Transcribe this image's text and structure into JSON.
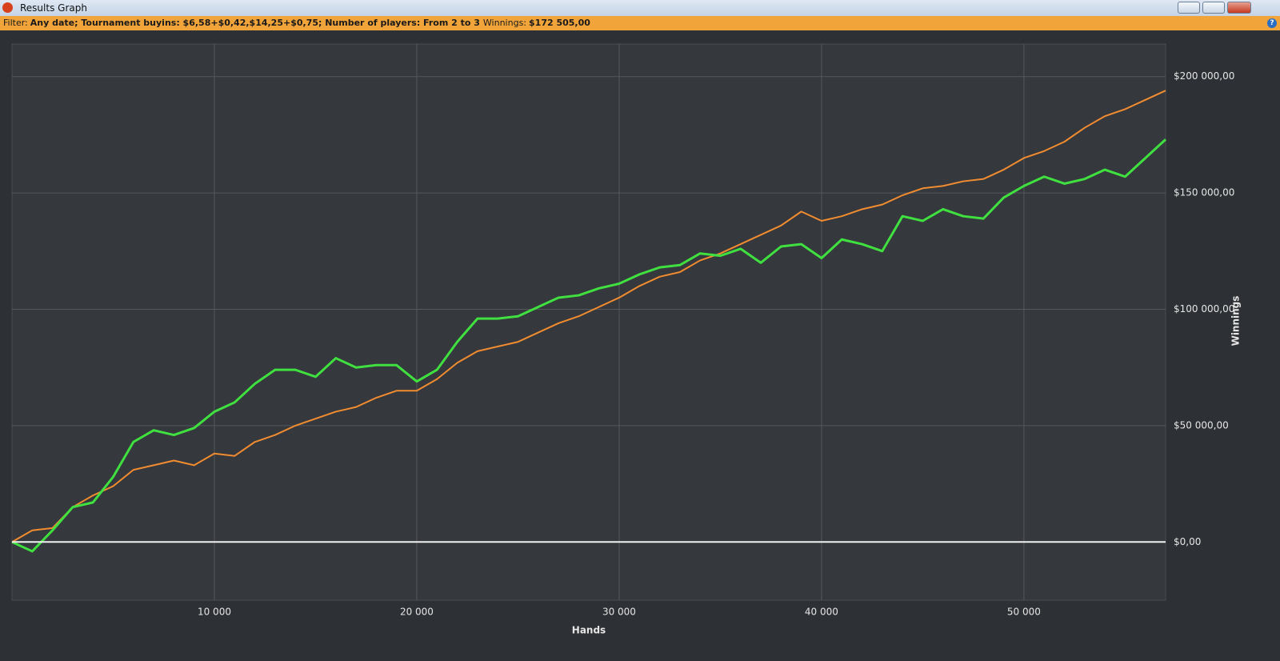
{
  "window": {
    "title": "Results Graph"
  },
  "filter": {
    "label": "Filter:",
    "criteria": "Any date; Tournament buyins: $6,58+$0,42,$14,25+$0,75; Number of players: From 2 to 3",
    "winnings_label": "Winnings:",
    "winnings": "$172 505,00",
    "help": "?"
  },
  "chart_data": {
    "type": "line",
    "x_label": "Hands",
    "y_label": "Winnings",
    "x": [
      0,
      1000,
      2000,
      3000,
      4000,
      5000,
      6000,
      7000,
      8000,
      9000,
      10000,
      11000,
      12000,
      13000,
      14000,
      15000,
      16000,
      17000,
      18000,
      19000,
      20000,
      21000,
      22000,
      23000,
      24000,
      25000,
      26000,
      27000,
      28000,
      29000,
      30000,
      31000,
      32000,
      33000,
      34000,
      35000,
      36000,
      37000,
      38000,
      39000,
      40000,
      41000,
      42000,
      43000,
      44000,
      45000,
      46000,
      47000,
      48000,
      49000,
      50000,
      51000,
      52000,
      53000,
      54000,
      55000,
      56000,
      57000
    ],
    "series": [
      {
        "color": "#f28c30",
        "values": [
          0,
          5000,
          6000,
          15000,
          20000,
          24000,
          31000,
          33000,
          35000,
          33000,
          38000,
          37000,
          43000,
          46000,
          50000,
          53000,
          56000,
          58000,
          62000,
          65000,
          65000,
          70000,
          77000,
          82000,
          84000,
          86000,
          90000,
          94000,
          97000,
          101000,
          105000,
          110000,
          114000,
          116000,
          121000,
          124000,
          128000,
          132000,
          136000,
          142000,
          138000,
          140000,
          143000,
          145000,
          149000,
          152000,
          153000,
          155000,
          156000,
          160000,
          165000,
          168000,
          172000,
          178000,
          183000,
          186000,
          190000,
          194000
        ]
      },
      {
        "color": "#3fe03f",
        "values": [
          0,
          -4000,
          5000,
          15000,
          17000,
          28000,
          43000,
          48000,
          46000,
          49000,
          56000,
          60000,
          68000,
          74000,
          74000,
          71000,
          79000,
          75000,
          76000,
          76000,
          69000,
          74000,
          86000,
          96000,
          96000,
          97000,
          101000,
          105000,
          106000,
          109000,
          111000,
          115000,
          118000,
          119000,
          124000,
          123000,
          126000,
          120000,
          127000,
          128000,
          122000,
          130000,
          128000,
          125000,
          140000,
          138000,
          143000,
          140000,
          139000,
          148000,
          153000,
          157000,
          154000,
          156000,
          160000,
          157000,
          165000,
          173000
        ]
      }
    ],
    "xlim": [
      0,
      57000
    ],
    "ylim": [
      -25000,
      214000
    ],
    "xticks": [
      {
        "value": 10000,
        "label": "10 000"
      },
      {
        "value": 20000,
        "label": "20 000"
      },
      {
        "value": 30000,
        "label": "30 000"
      },
      {
        "value": 40000,
        "label": "40 000"
      },
      {
        "value": 50000,
        "label": "50 000"
      }
    ],
    "yticks": [
      {
        "value": 0,
        "label": "$0,00"
      },
      {
        "value": 50000,
        "label": "$50 000,00"
      },
      {
        "value": 100000,
        "label": "$100 000,00"
      },
      {
        "value": 150000,
        "label": "$150 000,00"
      },
      {
        "value": 200000,
        "label": "$200 000,00"
      }
    ],
    "grid": true,
    "hline": 0
  }
}
